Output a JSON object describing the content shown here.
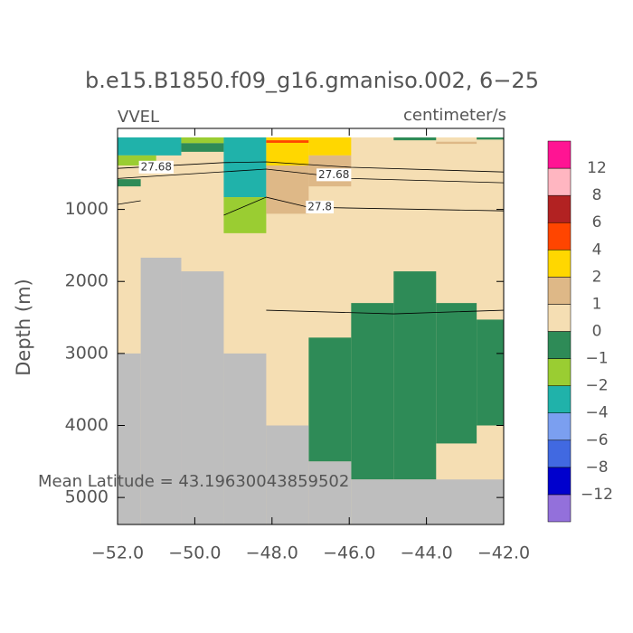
{
  "chart_data": {
    "type": "section",
    "title": "b.e15.B1850.f09_g16.gmaniso.002, 6−25",
    "left_label": "VVEL",
    "right_label": "centimeter/s",
    "y_label": "Depth (m)",
    "annotation": "Mean Latitude = 43.19630043859502",
    "xlim": [
      -52,
      -42
    ],
    "xticks": [
      {
        "value": -52,
        "label": "−52.0"
      },
      {
        "value": -50,
        "label": "−50.0"
      },
      {
        "value": -48,
        "label": "−48.0"
      },
      {
        "value": -46,
        "label": "−46.0"
      },
      {
        "value": -44,
        "label": "−44.0"
      },
      {
        "value": -42,
        "label": "−42.0"
      }
    ],
    "ylim": [
      -125,
      5375
    ],
    "yticks": [
      1000,
      2000,
      3000,
      4000,
      5000
    ],
    "levels": [
      {
        "value": -12,
        "label": "−12"
      },
      {
        "value": -8,
        "label": "−8"
      },
      {
        "value": -6,
        "label": "−6"
      },
      {
        "value": -4,
        "label": "−4"
      },
      {
        "value": -2,
        "label": "−2"
      },
      {
        "value": -1,
        "label": "−1"
      },
      0,
      1,
      2,
      4,
      6,
      8,
      12
    ],
    "colors": [
      "#9370db",
      "#0000cd",
      "#4169e1",
      "#7b9ff0",
      "#20b2aa",
      "#9acd32",
      "#2e8b57",
      "#f5deb3",
      "#deb887",
      "#ffd700",
      "#ff4500",
      "#b22222",
      "#ffb6c1",
      "#ff1493"
    ],
    "land_color": "#bebebe",
    "cells": [
      {
        "x": [
          -52,
          -42
        ],
        "depth": [
          0,
          5375
        ],
        "value": 0.5
      },
      {
        "x": [
          -52,
          -50.35
        ],
        "depth": [
          0,
          250
        ],
        "value": -3
      },
      {
        "x": [
          -52,
          -51.0
        ],
        "depth": [
          250,
          390
        ],
        "value": -1.5
      },
      {
        "x": [
          -52,
          -51.4
        ],
        "depth": [
          580,
          680
        ],
        "value": -0.5
      },
      {
        "x": [
          -50.35,
          -49.25
        ],
        "depth": [
          0,
          80
        ],
        "value": -1.5
      },
      {
        "x": [
          -50.35,
          -49.25
        ],
        "depth": [
          80,
          200
        ],
        "value": -0.5
      },
      {
        "x": [
          -49.25,
          -48.15
        ],
        "depth": [
          0,
          830
        ],
        "value": -3
      },
      {
        "x": [
          -49.25,
          -48.15
        ],
        "depth": [
          830,
          1330
        ],
        "value": -1.5
      },
      {
        "x": [
          -48.15,
          -47.05
        ],
        "depth": [
          0,
          390
        ],
        "value": 3
      },
      {
        "x": [
          -48.15,
          -47.05
        ],
        "depth": [
          40,
          75
        ],
        "value": 5
      },
      {
        "x": [
          -48.15,
          -47.05
        ],
        "depth": [
          390,
          1060
        ],
        "value": 1.5
      },
      {
        "x": [
          -47.05,
          -45.95
        ],
        "depth": [
          0,
          250
        ],
        "value": 3
      },
      {
        "x": [
          -47.05,
          -45.95
        ],
        "depth": [
          250,
          680
        ],
        "value": 1.5
      },
      {
        "x": [
          -44.85,
          -43.75
        ],
        "depth": [
          0,
          40
        ],
        "value": -0.5
      },
      {
        "x": [
          -43.75,
          -42.7
        ],
        "depth": [
          60,
          90
        ],
        "value": 1.5
      },
      {
        "x": [
          -42.7,
          -42
        ],
        "depth": [
          0,
          30
        ],
        "value": -0.5
      },
      {
        "x": [
          -47.05,
          -45.95
        ],
        "depth": [
          2780,
          4500
        ],
        "value": -0.5
      },
      {
        "x": [
          -45.95,
          -44.85
        ],
        "depth": [
          2300,
          4750
        ],
        "value": -0.5
      },
      {
        "x": [
          -44.85,
          -43.75
        ],
        "depth": [
          1860,
          4750
        ],
        "value": -0.5
      },
      {
        "x": [
          -43.75,
          -42.7
        ],
        "depth": [
          2300,
          4250
        ],
        "value": -0.5
      },
      {
        "x": [
          -42.7,
          -42
        ],
        "depth": [
          2530,
          4000
        ],
        "value": -0.5
      }
    ],
    "land": [
      {
        "x": [
          -52,
          -51.4
        ],
        "depth": [
          3000,
          5375
        ]
      },
      {
        "x": [
          -51.4,
          -50.35
        ],
        "depth": [
          1670,
          5375
        ]
      },
      {
        "x": [
          -50.35,
          -49.25
        ],
        "depth": [
          1860,
          5375
        ]
      },
      {
        "x": [
          -49.25,
          -48.15
        ],
        "depth": [
          3000,
          5375
        ]
      },
      {
        "x": [
          -48.15,
          -47.05
        ],
        "depth": [
          4000,
          5375
        ]
      },
      {
        "x": [
          -47.05,
          -45.95
        ],
        "depth": [
          4500,
          5375
        ]
      },
      {
        "x": [
          -45.95,
          -42
        ],
        "depth": [
          4750,
          5375
        ]
      }
    ],
    "contours": [
      {
        "level": 27.68,
        "x": [
          -52,
          -49.25,
          -48.15,
          -45.95,
          -42
        ],
        "depth": [
          430,
          350,
          340,
          415,
          480
        ]
      },
      {
        "level": 27.68,
        "x": [
          -52,
          -48.15,
          -45.95,
          -42
        ],
        "depth": [
          570,
          440,
          570,
          630
        ]
      },
      {
        "x": [
          -52,
          -51.4
        ],
        "depth": [
          930,
          880
        ]
      },
      {
        "level": 27.8,
        "x": [
          -49.25,
          -48.15,
          -47.05,
          -42
        ],
        "depth": [
          1080,
          830,
          970,
          1020
        ]
      },
      {
        "x": [
          -48.15,
          -44.85,
          -42
        ],
        "depth": [
          2400,
          2450,
          2400
        ]
      }
    ]
  }
}
